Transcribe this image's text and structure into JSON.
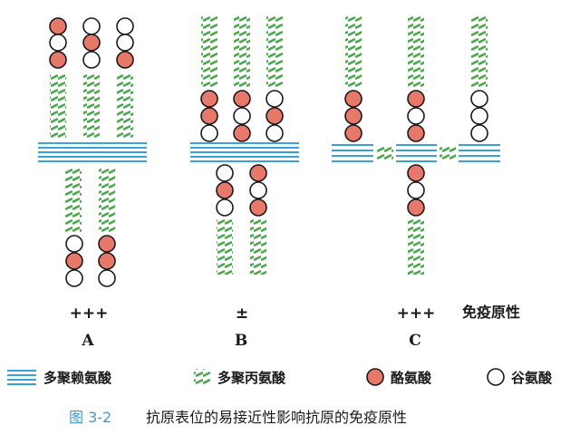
{
  "panels": [
    {
      "id": "A",
      "label": "A",
      "immunity": "+++"
    },
    {
      "id": "B",
      "label": "B",
      "immunity": "±"
    },
    {
      "id": "C",
      "label": "C",
      "immunity": "+++"
    }
  ],
  "immunity_heading": "免疫原性",
  "legend": {
    "polylysine": "多聚赖氨酸",
    "polyalanine": "多聚丙氨酸",
    "tyrosine": "酪氨酸",
    "glutamate": "谷氨酸"
  },
  "caption": {
    "number": "图 3-2",
    "text": "抗原表位的易接近性影响抗原的免疫原性"
  },
  "colors": {
    "lysine": "#3aa3d6",
    "alanine": "#4ea84e",
    "tyrosine": "#e8786a",
    "glutamate": "#ffffff",
    "caption_number": "#3a9bd5"
  }
}
